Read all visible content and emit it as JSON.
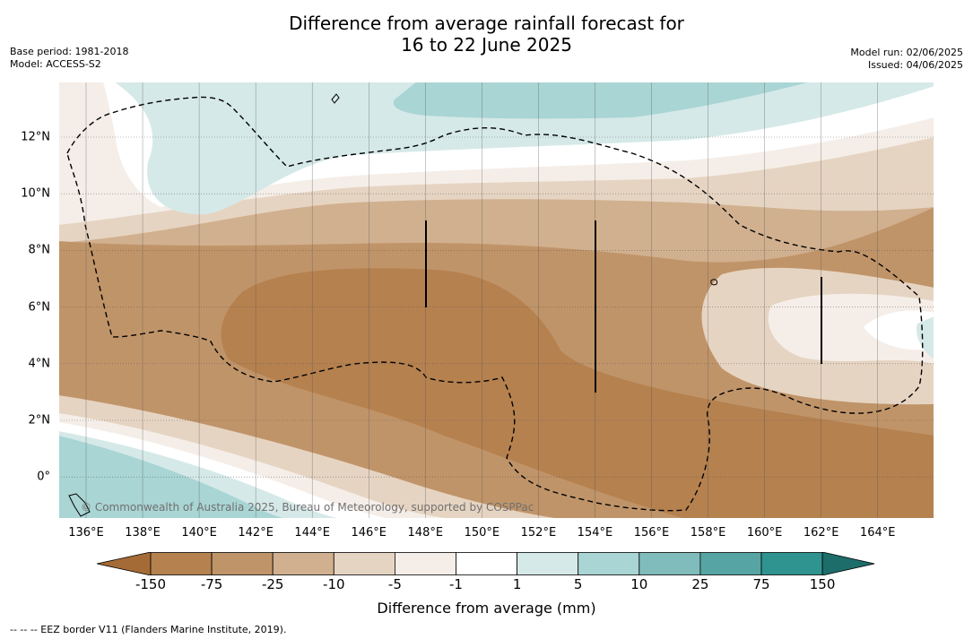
{
  "title_line1": "Difference from average rainfall forecast for",
  "title_line2": "16 to 22 June 2025",
  "meta_left": [
    "Base period: 1981-2018",
    "Model: ACCESS-S2"
  ],
  "meta_right": [
    "Model run: 02/06/2025",
    "Issued: 04/06/2025"
  ],
  "x_ticks": [
    "136°E",
    "138°E",
    "140°E",
    "142°E",
    "144°E",
    "146°E",
    "148°E",
    "150°E",
    "152°E",
    "154°E",
    "156°E",
    "158°E",
    "160°E",
    "162°E",
    "164°E"
  ],
  "y_ticks": [
    "12°N",
    "10°N",
    "8°N",
    "6°N",
    "4°N",
    "2°N",
    "0°"
  ],
  "credit": "© Commonwealth of Australia 2025, Bureau of Meteorology, supported by COSPPac",
  "colorbar": {
    "label": "Difference from average (mm)",
    "ticks": [
      "-150",
      "-75",
      "-25",
      "-10",
      "-5",
      "-1",
      "1",
      "5",
      "10",
      "25",
      "75",
      "150"
    ],
    "colors": [
      "#a56b36",
      "#b5814f",
      "#c09469",
      "#d1b08f",
      "#e6d4c2",
      "#f5eee8",
      "#ffffff",
      "#d5e9e8",
      "#a9d5d4",
      "#80bcbb",
      "#56a5a4",
      "#2f9390",
      "#1d6e6b"
    ]
  },
  "footnote": "--  --  -- EEZ border V11 (Flanders Marine Institute, 2019)."
}
